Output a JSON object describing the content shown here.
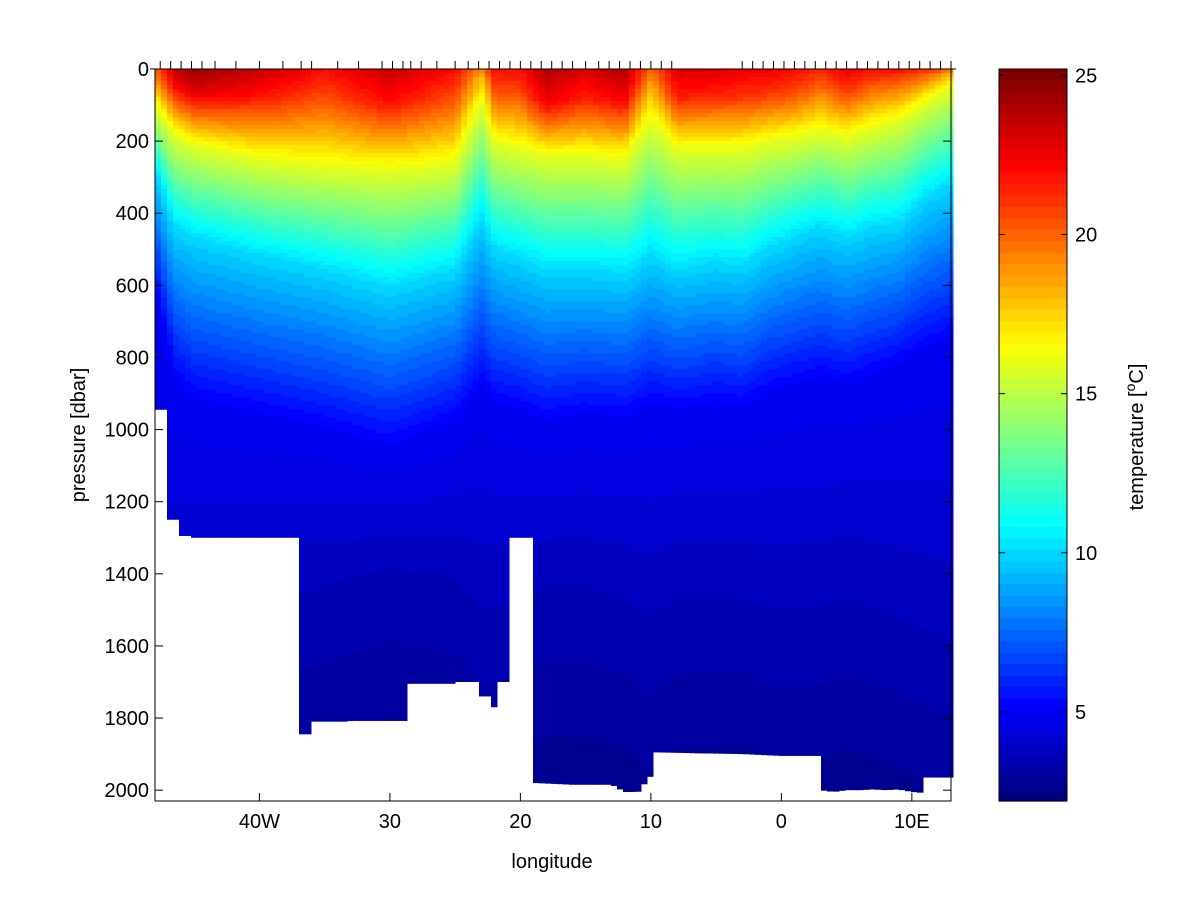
{
  "chart_data": {
    "type": "heatmap",
    "title": "",
    "xlabel": "longitude",
    "ylabel": "pressure [dbar]",
    "colorbar_label": "temperature [",
    "colorbar_label_sup": "o",
    "colorbar_label_unit": "C]",
    "colormap": "jet",
    "xlim": [
      -48,
      13
    ],
    "ylim": [
      0,
      2030
    ],
    "y_reversed": true,
    "clim": [
      2.2,
      25.2
    ],
    "xticks": [
      {
        "value": -40,
        "label": "40W"
      },
      {
        "value": -30,
        "label": "30"
      },
      {
        "value": -20,
        "label": "20"
      },
      {
        "value": -10,
        "label": "10"
      },
      {
        "value": 0,
        "label": "0"
      },
      {
        "value": 10,
        "label": "10E"
      }
    ],
    "yticks": [
      0,
      200,
      400,
      600,
      800,
      1000,
      1200,
      1400,
      1600,
      1800,
      2000
    ],
    "cticks": [
      5,
      10,
      15,
      20,
      25
    ],
    "station_longitudes": [
      -47.6,
      -46.8,
      -46,
      -45.2,
      -44.4,
      -43.4,
      -41.8,
      -40,
      -38.2,
      -36.8,
      -36,
      -34,
      -32.4,
      -30.6,
      -29.8,
      -29,
      -28.4,
      -27.6,
      -26.4,
      -25,
      -24,
      -23.2,
      -22.4,
      -21.6,
      -20.8,
      -20,
      -19.2,
      -18.4,
      -17.6,
      -16.8,
      -16,
      -15,
      -14,
      -13.2,
      -12.4,
      -11.6,
      -10.8,
      -10,
      -9.2,
      -8.4,
      -3,
      -2.2,
      -1.4,
      -0.6,
      0.2,
      1,
      1.8,
      2.6,
      3.4,
      4.2,
      5,
      5.8,
      6.6,
      7.4,
      8.2,
      9,
      9.8,
      10.6,
      11.4,
      12.2,
      13
    ],
    "bottom_depth": {
      "lon": [
        -48,
        -47.1,
        -47.1,
        -46.3,
        -46.3,
        -45.2,
        -45.2,
        -37,
        -37,
        -36,
        -36,
        -33.5,
        -33,
        -28.5,
        -28.5,
        -25,
        -25,
        -23.2,
        -23.2,
        -22.2,
        -22.2,
        -21.8,
        -21.8,
        -20.8,
        -20.8,
        -19,
        -19,
        -16,
        -13,
        -12,
        -11,
        -10,
        -10,
        -3,
        0,
        3,
        3,
        4,
        5,
        6,
        7,
        8,
        9,
        10,
        11,
        11,
        13
      ],
      "depth": [
        945,
        945,
        1250,
        1250,
        1295,
        1295,
        1300,
        1300,
        1845,
        1845,
        1810,
        1810,
        1808,
        1808,
        1705,
        1705,
        1700,
        1700,
        1740,
        1740,
        1770,
        1770,
        1700,
        1700,
        1300,
        1300,
        1980,
        1985,
        1985,
        2005,
        2005,
        1960,
        1895,
        1900,
        1905,
        1905,
        2000,
        2005,
        2000,
        2000,
        1998,
        2000,
        1998,
        2005,
        2008,
        1965,
        1965
      ]
    },
    "profile_params": {
      "lon": [
        -48,
        -46.5,
        -45,
        -40,
        -35,
        -30,
        -25,
        -23,
        -22,
        -20,
        -18,
        -15,
        -12,
        -10,
        -8,
        -5,
        -3,
        -1,
        1,
        3,
        5,
        7,
        9,
        11,
        13
      ],
      "sst": [
        20,
        23.5,
        24.5,
        23.5,
        22,
        23.5,
        22,
        19.5,
        22,
        22,
        24,
        23,
        24,
        20,
        23,
        23,
        22.5,
        22.5,
        22,
        21.5,
        22.5,
        22,
        22,
        21.5,
        20
      ],
      "mld": [
        40,
        50,
        60,
        70,
        80,
        90,
        80,
        20,
        60,
        70,
        90,
        80,
        80,
        40,
        80,
        70,
        80,
        70,
        70,
        50,
        60,
        40,
        30,
        20,
        10
      ],
      "d16": [
        100,
        180,
        210,
        250,
        270,
        280,
        260,
        90,
        200,
        220,
        240,
        240,
        250,
        140,
        220,
        220,
        220,
        200,
        190,
        170,
        190,
        160,
        140,
        90,
        50
      ],
      "d10": [
        280,
        440,
        470,
        520,
        560,
        610,
        560,
        420,
        500,
        530,
        560,
        560,
        570,
        520,
        560,
        540,
        550,
        500,
        470,
        440,
        470,
        440,
        430,
        360,
        320
      ],
      "d5": [
        600,
        860,
        920,
        960,
        1000,
        1050,
        980,
        880,
        930,
        950,
        980,
        960,
        970,
        930,
        950,
        930,
        940,
        900,
        880,
        860,
        880,
        850,
        820,
        780,
        750
      ],
      "tdeep": [
        3.6,
        3.5,
        3.4,
        3.3,
        3.2,
        3.1,
        3.15,
        3.3,
        3.3,
        3.25,
        3.2,
        3.2,
        3.25,
        3.35,
        3.25,
        3.25,
        3.25,
        3.3,
        3.3,
        3.3,
        3.25,
        3.3,
        3.35,
        3.4,
        3.45
      ]
    }
  }
}
